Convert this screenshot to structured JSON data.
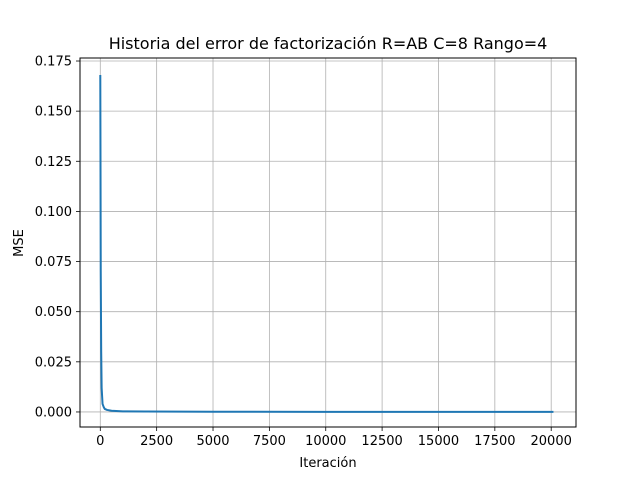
{
  "chart_data": {
    "type": "line",
    "title": "Historia del error de factorización R=AB C=8 Rango=4",
    "xlabel": "Iteración",
    "ylabel": "MSE",
    "xlim": [
      -900,
      21100
    ],
    "ylim": [
      -0.0075,
      0.1765
    ],
    "xticks": [
      0,
      2500,
      5000,
      7500,
      10000,
      12500,
      15000,
      17500,
      20000
    ],
    "xtick_labels": [
      "0",
      "2500",
      "5000",
      "7500",
      "10000",
      "12500",
      "15000",
      "17500",
      "20000"
    ],
    "yticks": [
      0.0,
      0.025,
      0.05,
      0.075,
      0.1,
      0.125,
      0.15,
      0.175
    ],
    "ytick_labels": [
      "0.000",
      "0.025",
      "0.050",
      "0.075",
      "0.100",
      "0.125",
      "0.150",
      "0.175"
    ],
    "grid": true,
    "series": [
      {
        "color": "#1f77b4",
        "x": [
          0,
          10,
          20,
          40,
          60,
          100,
          150,
          200,
          300,
          500,
          1000,
          2000,
          5000,
          10000,
          15000,
          20000,
          20100
        ],
        "y": [
          0.168,
          0.12,
          0.07,
          0.03,
          0.012,
          0.004,
          0.0025,
          0.0015,
          0.001,
          0.0006,
          0.0003,
          0.0002,
          0.0001,
          5e-05,
          3e-05,
          2e-05,
          2e-05
        ]
      }
    ]
  }
}
